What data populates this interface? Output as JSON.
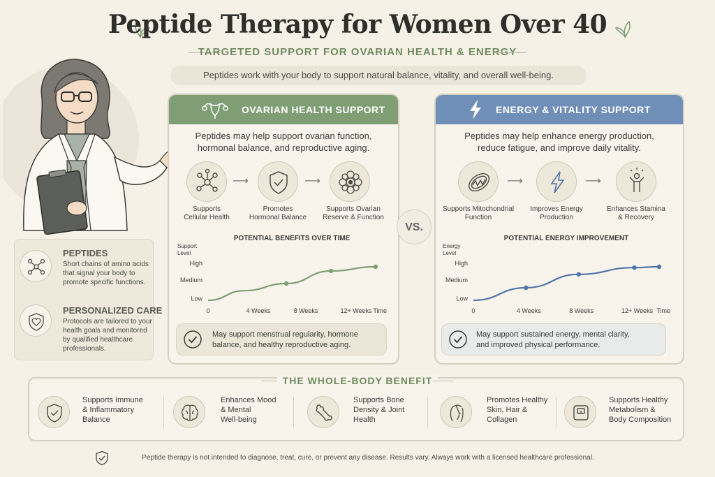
{
  "header": {
    "title": "Peptide Therapy for Women Over 40",
    "subtitle": "TARGETED SUPPORT FOR OVARIAN HEALTH & ENERGY",
    "intro": "Peptides work with your body to support natural balance, vitality, and overall well-being."
  },
  "info": {
    "items": [
      {
        "title": "PEPTIDES",
        "text": [
          "Short chains of amino acids",
          "that signal your body to",
          "promote specific functions."
        ],
        "icon": "molecule-icon"
      },
      {
        "title": "PERSONALIZED CARE",
        "text": [
          "Protocols are tailored to your",
          "health goals and monitored",
          "by qualified healthcare",
          "professionals."
        ],
        "icon": "heart-shield-icon"
      }
    ]
  },
  "ovarian": {
    "header": "OVARIAN HEALTH SUPPORT",
    "desc": [
      "Peptides may help support ovarian function,",
      "hormonal balance, and reproductive aging."
    ],
    "steps": [
      {
        "label": [
          "Supports",
          "Cellular Health"
        ],
        "icon": "cell-network-icon"
      },
      {
        "label": [
          "Promotes",
          "Hormonal Balance"
        ],
        "icon": "shield-check-icon"
      },
      {
        "label": [
          "Supports Ovarian",
          "Reserve & Function"
        ],
        "icon": "follicle-icon"
      }
    ],
    "callout": [
      "May support menstrual regularity, hormone",
      "balance, and healthy reproductive aging."
    ],
    "color": "#7f9e74"
  },
  "energy": {
    "header": "ENERGY & VITALITY SUPPORT",
    "desc": [
      "Peptides may help enhance energy production,",
      "reduce fatigue, and improve daily vitality."
    ],
    "steps": [
      {
        "label": [
          "Supports Mitochondrial",
          "Function"
        ],
        "icon": "mitochondria-icon"
      },
      {
        "label": [
          "Improves Energy",
          "Production"
        ],
        "icon": "lightning-icon"
      },
      {
        "label": [
          "Enhances Stamina",
          "& Recovery"
        ],
        "icon": "person-energy-icon"
      }
    ],
    "callout": [
      "May support sustained energy, mental clarity,",
      "and improved physical performance."
    ],
    "color": "#6f8fb8"
  },
  "vs": "VS.",
  "chart_data": [
    {
      "type": "line",
      "title": "POTENTIAL BENEFITS OVER TIME",
      "ylabel": [
        "Support",
        "Level"
      ],
      "xlabel": "Time",
      "x_ticks": [
        "0",
        "4 Weeks",
        "8 Weeks",
        "12+ Weeks"
      ],
      "y_ticks": [
        "Low",
        "Medium",
        "High"
      ],
      "series": [
        {
          "values": [
            0.0,
            0.23,
            0.4,
            0.7,
            0.8
          ],
          "x": [
            0,
            1.3,
            2.8,
            4.4,
            6.0
          ],
          "markers": [
            2,
            3,
            4
          ]
        }
      ],
      "ylim": [
        0,
        1
      ],
      "color": "#7f9e74"
    },
    {
      "type": "line",
      "title": "POTENTIAL ENERGY IMPROVEMENT",
      "ylabel": [
        "Energy",
        "Level"
      ],
      "xlabel": "Time",
      "x_ticks": [
        "0",
        "4 Weeks",
        "8 Weeks",
        "12+ Weeks"
      ],
      "y_ticks": [
        "Low",
        "Medium",
        "High"
      ],
      "series": [
        {
          "values": [
            0.0,
            0.3,
            0.62,
            0.78,
            0.8
          ],
          "x": [
            0,
            1.7,
            3.4,
            5.2,
            6.0
          ],
          "markers": [
            1,
            2,
            3,
            4
          ]
        }
      ],
      "ylim": [
        0,
        1
      ],
      "color": "#4f76a8"
    }
  ],
  "wholebody": {
    "title": "THE WHOLE-BODY BENEFIT",
    "items": [
      {
        "text": [
          "Supports Immune",
          "& Inflammatory",
          "Balance"
        ],
        "icon": "shield-check-icon"
      },
      {
        "text": [
          "Enhances Mood",
          "& Mental",
          "Well-being"
        ],
        "icon": "brain-icon"
      },
      {
        "text": [
          "Supports Bone",
          "Density & Joint",
          "Health"
        ],
        "icon": "bone-icon"
      },
      {
        "text": [
          "Promotes Healthy",
          "Skin, Hair &",
          "Collagen"
        ],
        "icon": "face-profile-icon"
      },
      {
        "text": [
          "Supports Healthy",
          "Metabolism &",
          "Body Composition"
        ],
        "icon": "scale-icon"
      }
    ]
  },
  "disclaimer": "Peptide therapy is not intended to diagnose, treat, cure, or prevent any disease. Results vary. Always work with a licensed healthcare professional."
}
